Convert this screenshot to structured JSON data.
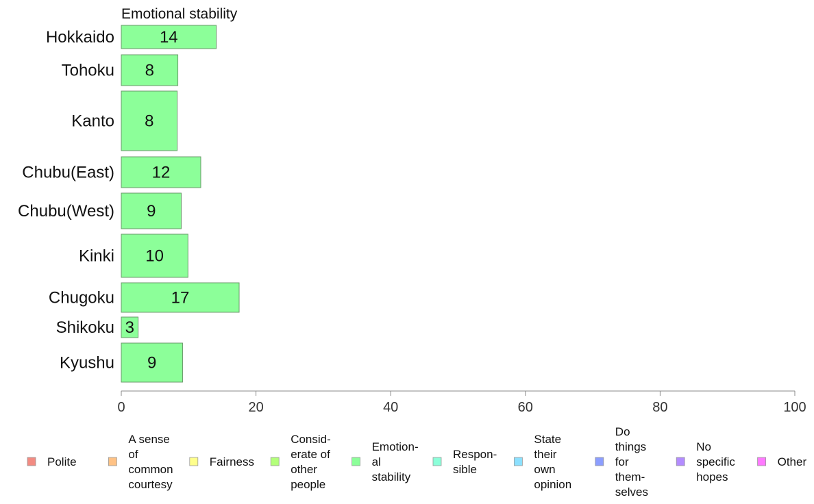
{
  "chart_data": {
    "type": "bar",
    "orientation": "horizontal",
    "title": "Emotional stability",
    "categories": [
      "Hokkaido",
      "Tohoku",
      "Kanto",
      "Chubu(East)",
      "Chubu(West)",
      "Kinki",
      "Chugoku",
      "Shikoku",
      "Kyushu"
    ],
    "values": [
      14,
      8,
      8,
      12,
      9,
      10,
      17,
      3,
      9
    ],
    "exact_values": [
      14.1,
      8.4,
      8.3,
      11.8,
      8.9,
      9.9,
      17.5,
      2.5,
      9.1
    ],
    "series_color": "#8cff99",
    "bar_stroke": "#6a9a6a",
    "xlim": [
      0,
      100
    ],
    "xticks": [
      0,
      20,
      40,
      60,
      80,
      100
    ],
    "xlabel": "",
    "ylabel": "",
    "grid": false,
    "legend_position": "bottom",
    "legend": [
      {
        "label": "Polite",
        "color": "#f28b82"
      },
      {
        "label": "A sense of common courtesy",
        "color": "#ffc285"
      },
      {
        "label": "Fairness",
        "color": "#ffff8c"
      },
      {
        "label": "Consid-erate of other people",
        "color": "#b3ff7a"
      },
      {
        "label": "Emotion-al stability",
        "color": "#8cff99"
      },
      {
        "label": "Respon-sible",
        "color": "#8cffd9"
      },
      {
        "label": "State their own opinion",
        "color": "#8ce0ff"
      },
      {
        "label": "Do things for them-selves",
        "color": "#8c9eff"
      },
      {
        "label": "No specific hopes",
        "color": "#b38cff"
      },
      {
        "label": "Other",
        "color": "#ff7aff"
      }
    ]
  }
}
